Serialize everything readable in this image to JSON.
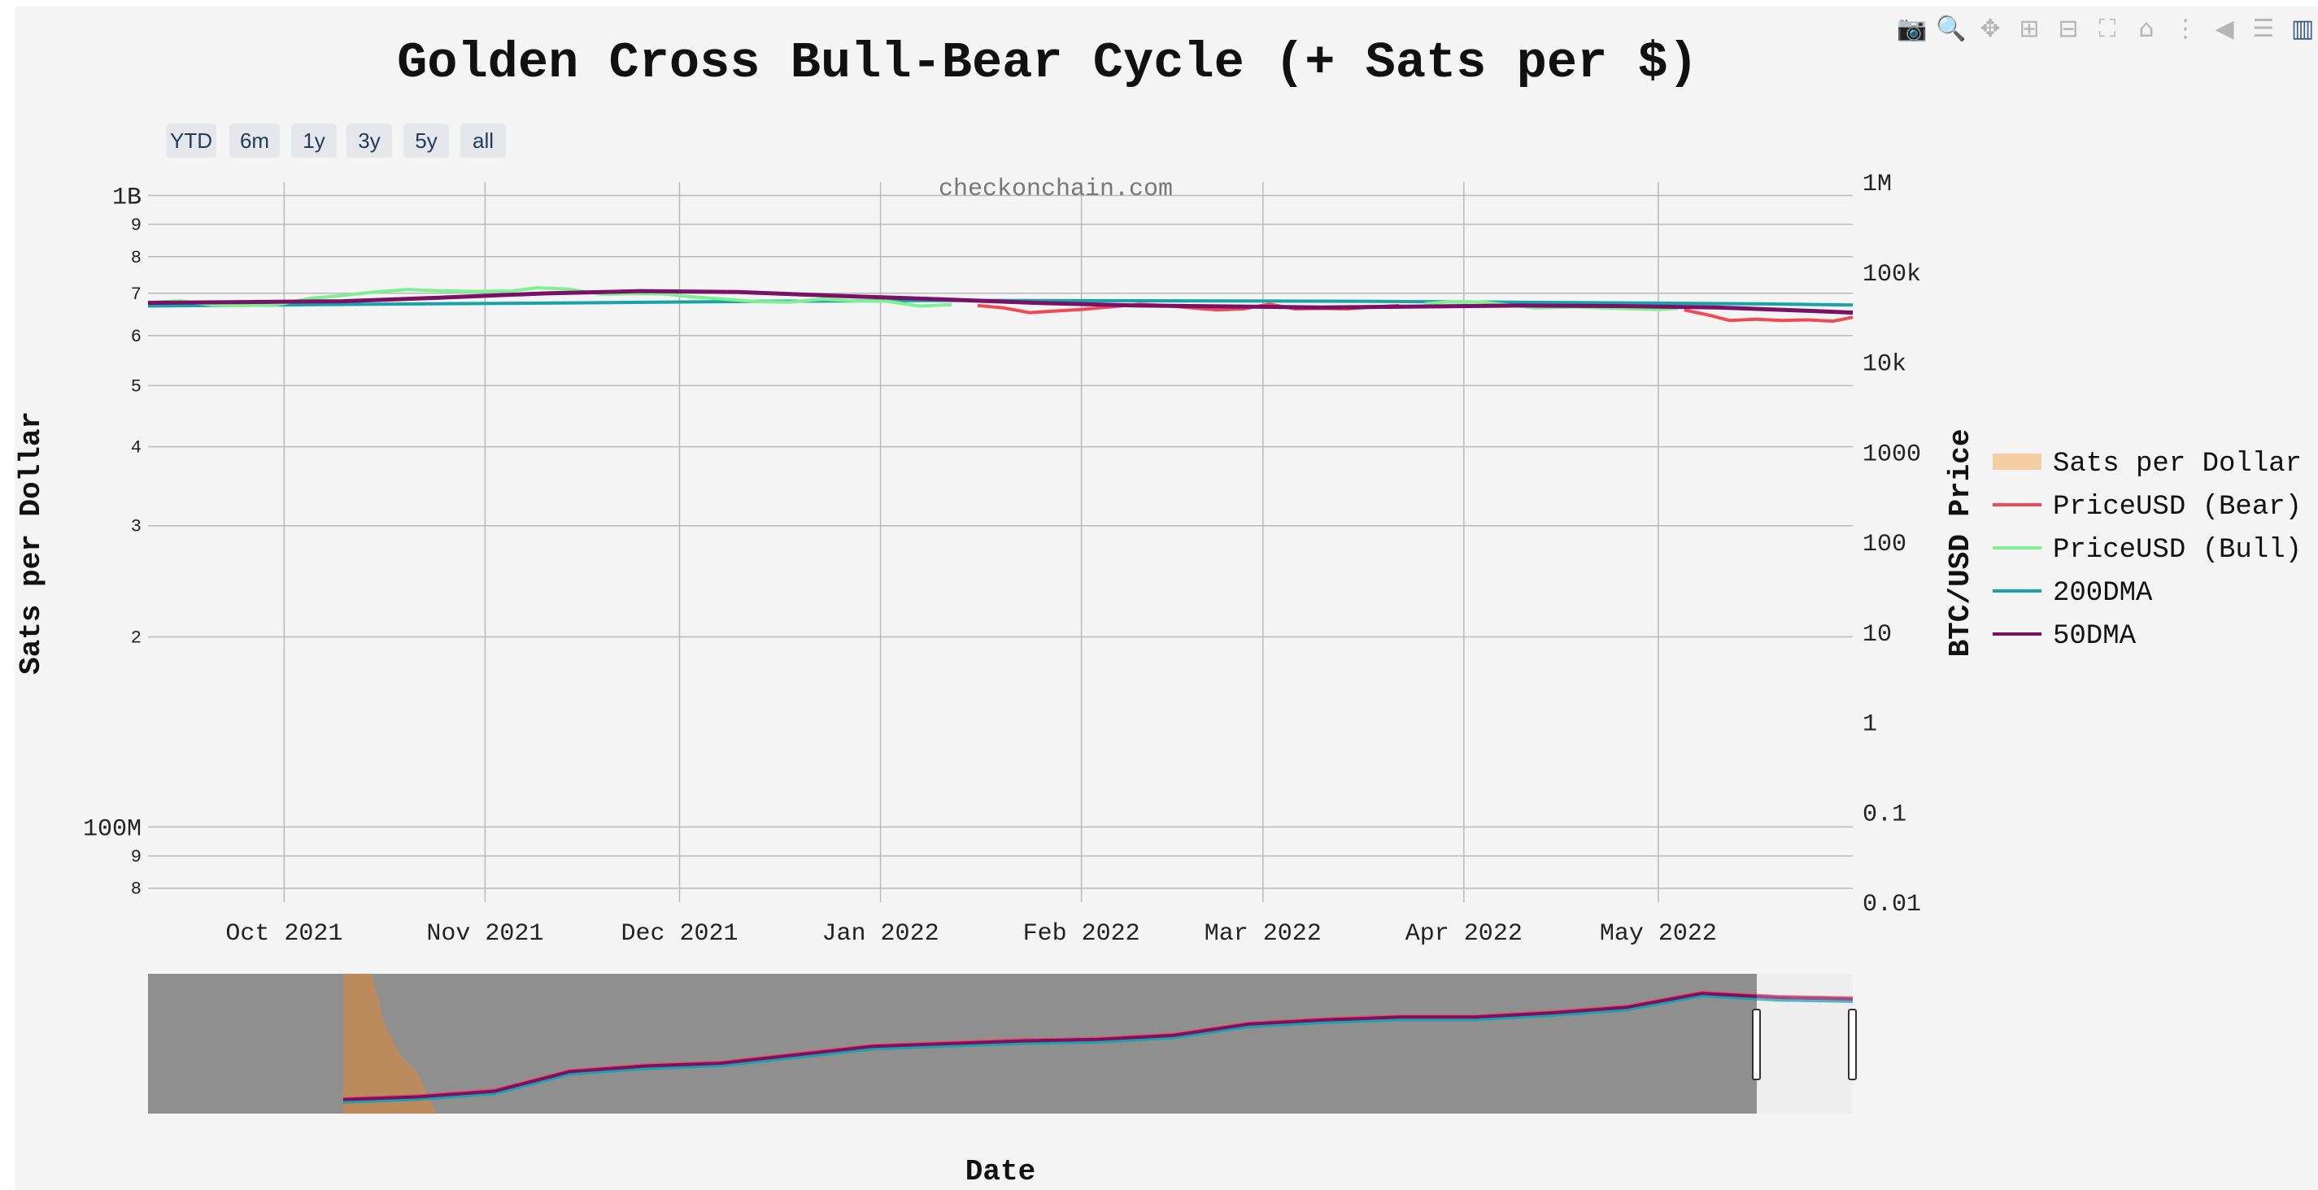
{
  "chart_data": {
    "type": "line",
    "title": "Golden Cross Bull-Bear Cycle (+ Sats per $)",
    "xlabel": "Date",
    "ylabel_left": "Sats per Dollar",
    "ylabel_right": "BTC/USD Price",
    "left_axis": {
      "scale": "log",
      "range": [
        76000000,
        1050000000
      ],
      "major_ticks": [
        "1B",
        "100M"
      ],
      "minor_ticks": [
        "9",
        "8",
        "7",
        "6",
        "5",
        "4",
        "3",
        "2",
        "9",
        "8"
      ]
    },
    "right_axis": {
      "scale": "log",
      "range": [
        0.01,
        1000000
      ],
      "tick_labels": [
        "0.01",
        "0.1",
        "1",
        "10",
        "100",
        "1000",
        "10k",
        "100k",
        "1M"
      ]
    },
    "x_ticks": [
      "Oct 2021",
      "Nov 2021",
      "Dec 2021",
      "Jan 2022",
      "Feb 2022",
      "Mar 2022",
      "Apr 2022",
      "May 2022"
    ],
    "x_range": [
      "2021-09-10",
      "2022-05-31"
    ],
    "grid": true,
    "legend_position": "right",
    "watermark": "checkonchain.com",
    "range_buttons": [
      "YTD",
      "6m",
      "1y",
      "3y",
      "5y",
      "all"
    ],
    "series": [
      {
        "name": "Sats per Dollar",
        "color": "#f4c38d",
        "points": []
      },
      {
        "name": "PriceUSD (Bear)",
        "color": "#ef4b55",
        "points": [
          [
            "2022-01-16",
            42500
          ],
          [
            "2022-01-20",
            40000
          ],
          [
            "2022-01-24",
            35500
          ],
          [
            "2022-01-28",
            37000
          ],
          [
            "2022-02-01",
            38500
          ],
          [
            "2022-02-06",
            41500
          ],
          [
            "2022-02-10",
            44000
          ],
          [
            "2022-02-14",
            42500
          ],
          [
            "2022-02-18",
            40000
          ],
          [
            "2022-02-22",
            38000
          ],
          [
            "2022-02-26",
            39000
          ],
          [
            "2022-03-02",
            44000
          ],
          [
            "2022-03-06",
            39000
          ],
          [
            "2022-03-10",
            39500
          ],
          [
            "2022-03-14",
            39000
          ],
          [
            "2022-03-18",
            41000
          ],
          [
            "2022-03-22",
            42500
          ],
          [
            "2022-05-05",
            38000
          ],
          [
            "2022-05-09",
            33000
          ],
          [
            "2022-05-12",
            29000
          ],
          [
            "2022-05-16",
            30000
          ],
          [
            "2022-05-20",
            29000
          ],
          [
            "2022-05-24",
            29500
          ],
          [
            "2022-05-28",
            28500
          ],
          [
            "2022-05-31",
            31500
          ]
        ]
      },
      {
        "name": "PriceUSD (Bull)",
        "color": "#7df08f",
        "points": [
          [
            "2021-09-10",
            46000
          ],
          [
            "2021-09-15",
            48000
          ],
          [
            "2021-09-20",
            43000
          ],
          [
            "2021-09-25",
            42500
          ],
          [
            "2021-09-30",
            43500
          ],
          [
            "2021-10-05",
            51000
          ],
          [
            "2021-10-10",
            55000
          ],
          [
            "2021-10-15",
            60000
          ],
          [
            "2021-10-20",
            64000
          ],
          [
            "2021-10-25",
            62000
          ],
          [
            "2021-10-30",
            61000
          ],
          [
            "2021-11-05",
            61500
          ],
          [
            "2021-11-09",
            67000
          ],
          [
            "2021-11-14",
            64500
          ],
          [
            "2021-11-19",
            57000
          ],
          [
            "2021-11-24",
            57500
          ],
          [
            "2021-11-29",
            57000
          ],
          [
            "2021-12-03",
            53000
          ],
          [
            "2021-12-08",
            50000
          ],
          [
            "2021-12-13",
            47000
          ],
          [
            "2021-12-18",
            46500
          ],
          [
            "2021-12-23",
            50000
          ],
          [
            "2021-12-28",
            48000
          ],
          [
            "2022-01-02",
            47500
          ],
          [
            "2022-01-07",
            42000
          ],
          [
            "2022-01-12",
            43500
          ],
          [
            "2022-03-26",
            44500
          ],
          [
            "2022-03-30",
            47000
          ],
          [
            "2022-04-04",
            46500
          ],
          [
            "2022-04-08",
            43000
          ],
          [
            "2022-04-12",
            40000
          ],
          [
            "2022-04-18",
            41000
          ],
          [
            "2022-04-22",
            40000
          ],
          [
            "2022-04-27",
            39000
          ],
          [
            "2022-05-01",
            38500
          ],
          [
            "2022-05-04",
            39500
          ]
        ]
      },
      {
        "name": "200DMA",
        "color": "#17a3a8",
        "points": [
          [
            "2021-09-10",
            42000
          ],
          [
            "2021-10-15",
            44000
          ],
          [
            "2021-11-15",
            45500
          ],
          [
            "2021-12-15",
            47500
          ],
          [
            "2022-01-15",
            48500
          ],
          [
            "2022-02-15",
            48000
          ],
          [
            "2022-03-15",
            47500
          ],
          [
            "2022-04-15",
            46000
          ],
          [
            "2022-05-15",
            44500
          ],
          [
            "2022-05-31",
            43000
          ]
        ]
      },
      {
        "name": "50DMA",
        "color": "#7a1167",
        "points": [
          [
            "2021-09-10",
            45500
          ],
          [
            "2021-09-25",
            46500
          ],
          [
            "2021-10-10",
            47500
          ],
          [
            "2021-10-25",
            52000
          ],
          [
            "2021-11-10",
            58000
          ],
          [
            "2021-11-25",
            61500
          ],
          [
            "2021-12-10",
            60000
          ],
          [
            "2021-12-25",
            54500
          ],
          [
            "2022-01-10",
            50000
          ],
          [
            "2022-01-25",
            45500
          ],
          [
            "2022-02-10",
            42500
          ],
          [
            "2022-02-25",
            41500
          ],
          [
            "2022-03-10",
            40500
          ],
          [
            "2022-03-25",
            41500
          ],
          [
            "2022-04-10",
            42500
          ],
          [
            "2022-04-25",
            42000
          ],
          [
            "2022-05-10",
            40500
          ],
          [
            "2022-05-25",
            37000
          ],
          [
            "2022-05-31",
            35500
          ]
        ]
      }
    ]
  }
}
